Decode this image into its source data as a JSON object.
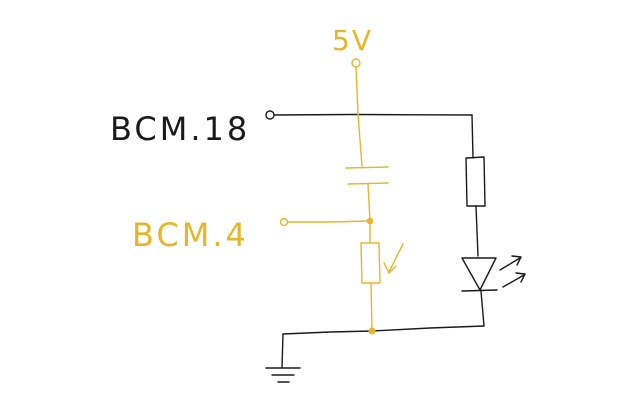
{
  "labels": {
    "supply": "5V",
    "pin_top": "BCM.18",
    "pin_mid": "BCM.4"
  },
  "colors": {
    "black_ink": "#1a1a1a",
    "amber_ink": "#e8b528",
    "background": "#ffffff"
  },
  "components": {
    "supply_terminal": "open-circle-terminal",
    "capacitor": "capacitor-symbol",
    "photoresistor": "light-dependent-resistor-symbol",
    "resistor": "resistor-symbol",
    "led": "led-symbol",
    "ground": "ground-symbol"
  }
}
